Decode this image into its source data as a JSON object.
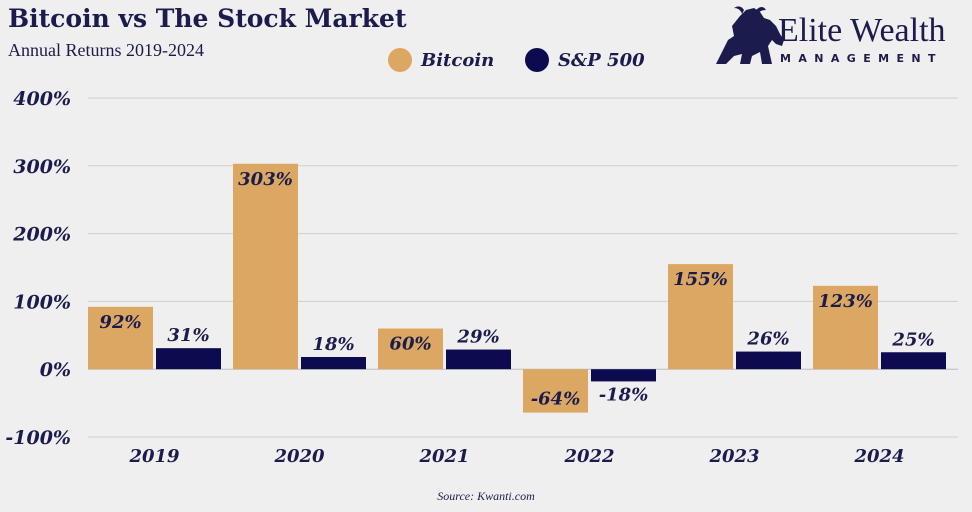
{
  "colors": {
    "bitcoin": "#dba762",
    "sp500": "#0d0b50",
    "text": "#1b1b4d",
    "grid": "#cfcfcf",
    "background": "#efefef"
  },
  "logo": {
    "name": "Elite Wealth",
    "sub": "MANAGEMENT",
    "icon": "bull-icon"
  },
  "chart_data": {
    "type": "bar",
    "title": "Bitcoin vs The Stock Market",
    "subtitle": "Annual Returns 2019-2024",
    "categories": [
      "2019",
      "2020",
      "2021",
      "2022",
      "2023",
      "2024"
    ],
    "series": [
      {
        "name": "Bitcoin",
        "values": [
          92,
          303,
          60,
          -64,
          155,
          123
        ],
        "labels": [
          "92%",
          "303%",
          "60%",
          "-64%",
          "155%",
          "123%"
        ]
      },
      {
        "name": "S&P 500",
        "values": [
          31,
          18,
          29,
          -18,
          26,
          25
        ],
        "labels": [
          "31%",
          "18%",
          "29%",
          "-18%",
          "26%",
          "25%"
        ]
      }
    ],
    "ylim": [
      -100,
      400
    ],
    "yticks": [
      400,
      300,
      200,
      100,
      0,
      -100
    ],
    "ytick_labels": [
      "400%",
      "300%",
      "200%",
      "100%",
      "0%",
      "-100%"
    ],
    "grid": true,
    "legend_position": "top-center",
    "source": "Source: Kwanti.com"
  }
}
